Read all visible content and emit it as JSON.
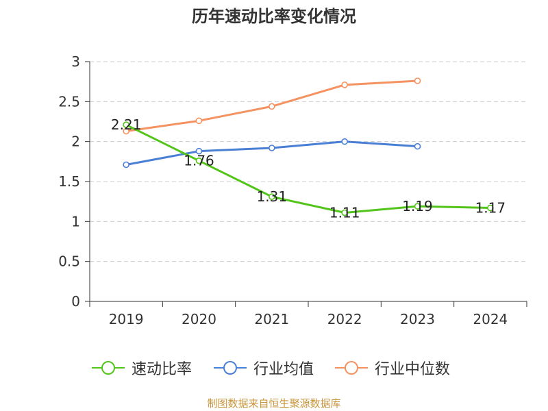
{
  "chart_data": {
    "type": "line",
    "title": "历年速动比率变化情况",
    "categories": [
      "2019",
      "2020",
      "2021",
      "2022",
      "2023",
      "2024"
    ],
    "ylim": [
      0,
      3
    ],
    "yticks": [
      0,
      0.5,
      1,
      1.5,
      2,
      2.5,
      3
    ],
    "ytick_labels": [
      "0",
      "0.5",
      "1",
      "1.5",
      "2",
      "2.5",
      "3"
    ],
    "grid": true,
    "legend_position": "bottom",
    "series": [
      {
        "name": "速动比率",
        "color": "#52c41a",
        "values": [
          2.21,
          1.76,
          1.31,
          1.11,
          1.19,
          1.17
        ],
        "labels": [
          "2.21",
          "1.76",
          "1.31",
          "1.11",
          "1.19",
          "1.17"
        ]
      },
      {
        "name": "行业均值",
        "color": "#4a7fd6",
        "values": [
          1.71,
          1.88,
          1.92,
          2.0,
          1.94,
          null
        ]
      },
      {
        "name": "行业中位数",
        "color": "#f59261",
        "values": [
          2.13,
          2.26,
          2.44,
          2.71,
          2.76,
          null
        ]
      }
    ]
  },
  "source_text": "制图数据来自恒生聚源数据库",
  "source_color": "#c8963c"
}
